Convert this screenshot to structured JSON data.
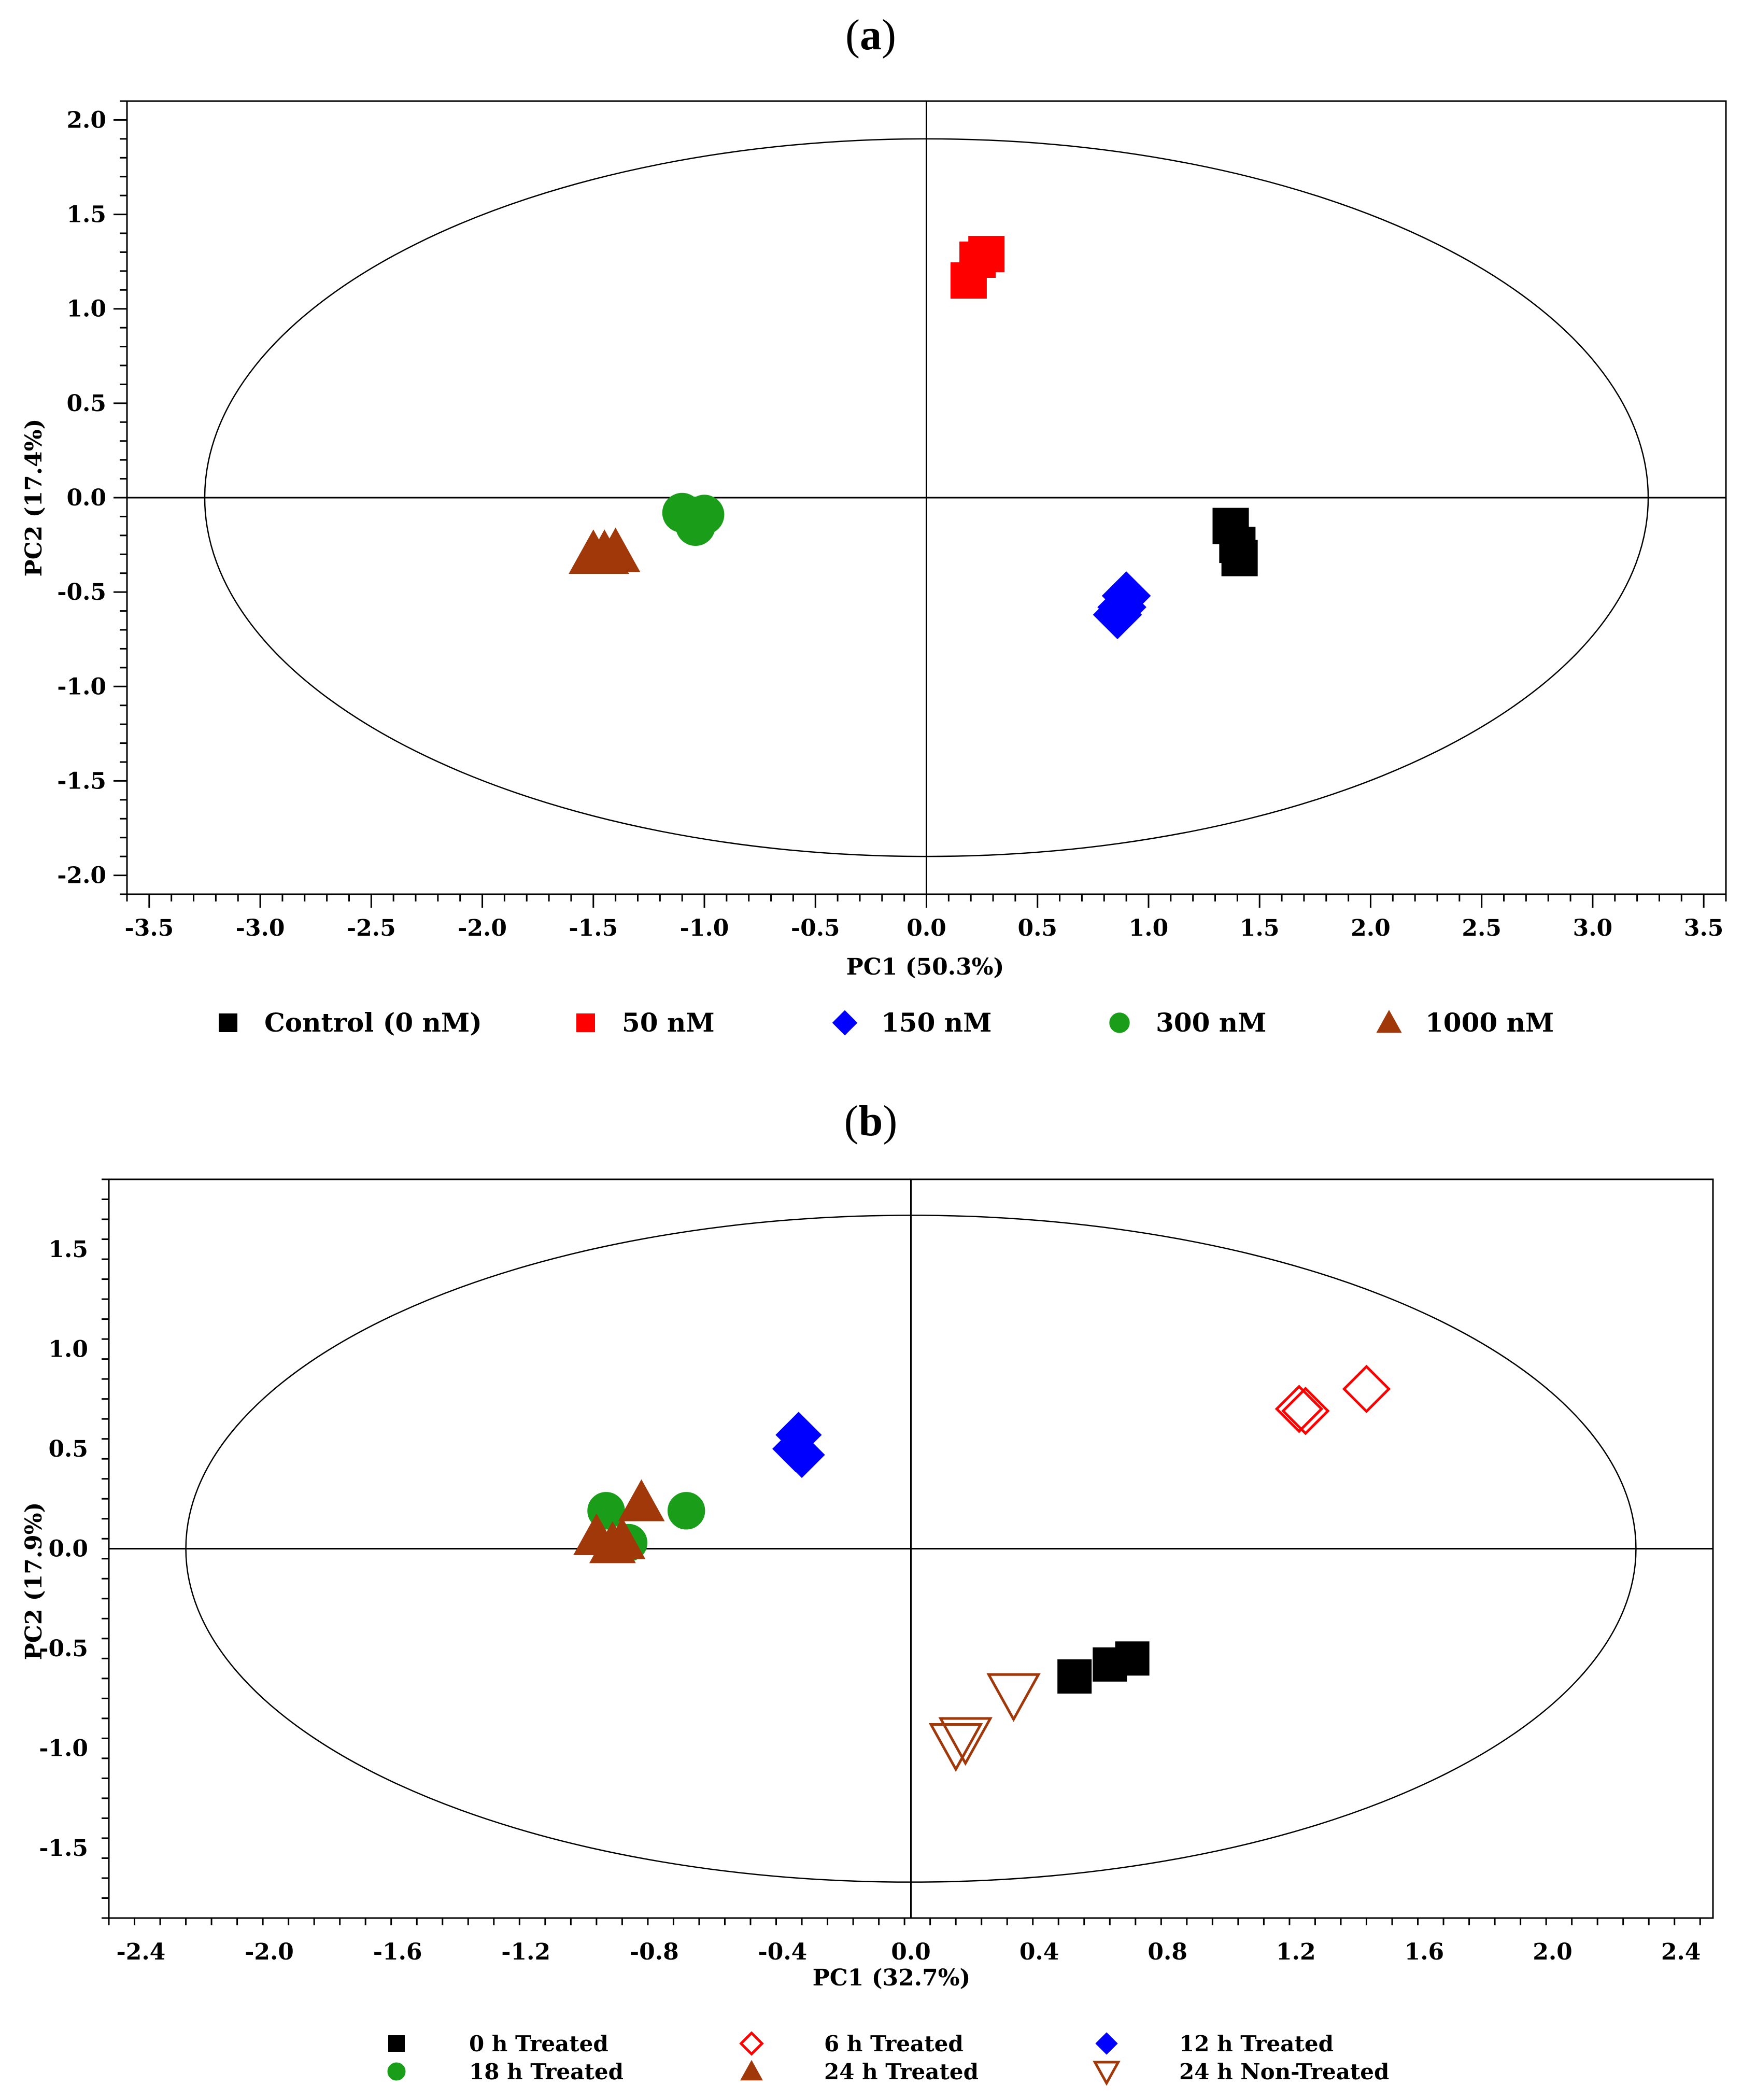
{
  "chart_data": [
    {
      "panel": "(a)",
      "panel_letter": "a",
      "type": "scatter",
      "xlabel": "PC1 (50.3%)",
      "ylabel": "PC2 (17.4%)",
      "xlim": [
        -3.6,
        3.6
      ],
      "ylim": [
        -2.1,
        2.1
      ],
      "xticks": [
        -3.5,
        -3.0,
        -2.5,
        -2.0,
        -1.5,
        -1.0,
        -0.5,
        0.0,
        0.5,
        1.0,
        1.5,
        2.0,
        2.5,
        3.0,
        3.5
      ],
      "xtick_labels": [
        "-3.5",
        "-3.0",
        "-2.5",
        "-2.0",
        "-1.5",
        "-1.0",
        "-0.5",
        "0.0",
        "0.5",
        "1.0",
        "1.5",
        "2.0",
        "2.5",
        "3.0",
        "3.5"
      ],
      "yticks": [
        2.0,
        1.5,
        1.0,
        0.5,
        0.0,
        -0.5,
        -1.0,
        -1.5,
        -2.0
      ],
      "ytick_labels": [
        "2.0",
        "1.5",
        "1.0",
        "0.5",
        "0.0",
        "-0.5",
        "-1.0",
        "-1.5",
        "-2.0"
      ],
      "ellipse": {
        "rx": 3.25,
        "ry": 1.9
      },
      "series": [
        {
          "name": "Control (0 nM)",
          "marker": "square",
          "color": "#000000",
          "filled": true,
          "x": [
            1.37,
            1.4,
            1.41
          ],
          "y": [
            -0.15,
            -0.25,
            -0.32
          ]
        },
        {
          "name": "50 nM",
          "marker": "square",
          "color": "#ff0000",
          "filled": true,
          "x": [
            0.19,
            0.23,
            0.27
          ],
          "y": [
            1.15,
            1.26,
            1.29
          ]
        },
        {
          "name": "150 nM",
          "marker": "diamond",
          "color": "#0000ff",
          "filled": true,
          "x": [
            0.86,
            0.88,
            0.9
          ],
          "y": [
            -0.62,
            -0.58,
            -0.52
          ]
        },
        {
          "name": "300 nM",
          "marker": "circle",
          "color": "#1a9e1a",
          "filled": true,
          "x": [
            -1.1,
            -1.05,
            -1.0,
            -1.04
          ],
          "y": [
            -0.08,
            -0.1,
            -0.09,
            -0.15
          ]
        },
        {
          "name": "1000 nM",
          "marker": "triangle-up",
          "color": "#a0380a",
          "filled": true,
          "x": [
            -1.5,
            -1.45,
            -1.4
          ],
          "y": [
            -0.3,
            -0.3,
            -0.29
          ]
        }
      ]
    },
    {
      "panel": "(b)",
      "panel_letter": "b",
      "type": "scatter",
      "xlabel": "PC1 (32.7%)",
      "ylabel": "PC2 (17.9%)",
      "xlim": [
        -2.5,
        2.5
      ],
      "ylim": [
        -1.85,
        1.85
      ],
      "xticks": [
        -2.4,
        -2.0,
        -1.6,
        -1.2,
        -0.8,
        -0.4,
        0.0,
        0.4,
        0.8,
        1.2,
        1.6,
        2.0,
        2.4
      ],
      "xtick_labels": [
        "-2.4",
        "-2.0",
        "-1.6",
        "-1.2",
        "-0.8",
        "-0.4",
        "0.0",
        "0.4",
        "0.8",
        "1.2",
        "1.6",
        "2.0",
        "2.4"
      ],
      "yticks": [
        1.5,
        1.0,
        0.5,
        0.0,
        -0.5,
        -1.0,
        -1.5
      ],
      "ytick_labels": [
        "1.5",
        "1.0",
        "0.5",
        "0.0",
        "-0.5",
        "-1.0",
        "-1.5"
      ],
      "ellipse": {
        "rx": 2.26,
        "ry": 1.67
      },
      "series": [
        {
          "name": "0 h Treated",
          "marker": "square",
          "color": "#000000",
          "filled": true,
          "x": [
            0.51,
            0.62,
            0.69
          ],
          "y": [
            -0.64,
            -0.58,
            -0.55
          ]
        },
        {
          "name": "6 h Treated",
          "marker": "diamond",
          "color": "#ff0000",
          "filled": false,
          "x": [
            1.21,
            1.23,
            1.42
          ],
          "y": [
            0.7,
            0.69,
            0.8
          ]
        },
        {
          "name": "12 h Treated",
          "marker": "diamond",
          "color": "#0000ff",
          "filled": true,
          "x": [
            -0.36,
            -0.35,
            -0.34
          ],
          "y": [
            0.5,
            0.57,
            0.47
          ]
        },
        {
          "name": "18 h Treated",
          "marker": "circle",
          "color": "#1a9e1a",
          "filled": true,
          "x": [
            -0.95,
            -0.88,
            -0.7
          ],
          "y": [
            0.19,
            0.03,
            0.19
          ]
        },
        {
          "name": "24 h Treated",
          "marker": "triangle-up",
          "color": "#a0380a",
          "filled": true,
          "x": [
            -0.98,
            -0.9,
            -0.84,
            -0.93
          ],
          "y": [
            0.06,
            0.04,
            0.23,
            0.02
          ]
        },
        {
          "name": "24 h Non-Treated",
          "marker": "triangle-down",
          "color": "#a0380a",
          "filled": false,
          "x": [
            0.14,
            0.17,
            0.32
          ],
          "y": [
            -0.98,
            -0.95,
            -0.73
          ]
        }
      ]
    }
  ]
}
